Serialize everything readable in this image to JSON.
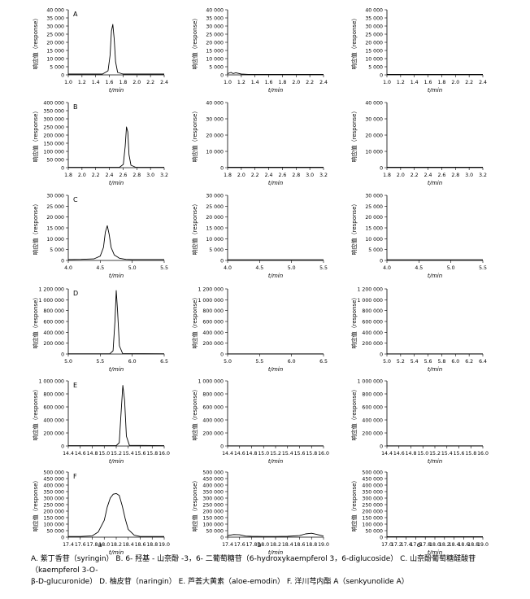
{
  "figure": {
    "columns": [
      "a",
      "b",
      "c"
    ],
    "panel_letters": [
      "A",
      "B",
      "C",
      "D",
      "E",
      "F"
    ],
    "caption_line1": "A. 紫丁香苷（syringin） B. 6- 羟基 - 山奈酚 -3，6- 二葡萄糖苷（6-hydroxykaempferol 3，6-diglucoside） C. 山奈酚葡萄糖醛酸苷（kaempferol 3-O-",
    "caption_line2": "β-D-glucuronide） D. 柚皮苷（naringin） E. 芦荟大黄素（aloe-emodin） F. 洋川芎内酯 A（senkyunolide A）"
  },
  "chart_data": [
    {
      "type": "line",
      "panel": "A",
      "column": "a",
      "xlabel": "t/min",
      "ylabel": "响应值（response）",
      "xlim": [
        1.0,
        2.4
      ],
      "xticks": [
        "1.0",
        "1.2",
        "1.4",
        "1.6",
        "1.8",
        "2.0",
        "2.2",
        "2.4"
      ],
      "ylim": [
        0,
        40000
      ],
      "yticks": [
        "0",
        "5 000",
        "10 000",
        "15 000",
        "20 000",
        "25 000",
        "30 000",
        "35 000",
        "40 000"
      ],
      "series": [
        {
          "x": [
            1.0,
            1.5,
            1.58,
            1.61,
            1.63,
            1.65,
            1.67,
            1.69,
            1.72,
            1.8,
            2.4
          ],
          "y": [
            500,
            500,
            2500,
            12000,
            27000,
            31000,
            22000,
            8000,
            1500,
            500,
            500
          ]
        }
      ]
    },
    {
      "type": "line",
      "panel": "A",
      "column": "b",
      "xlabel": "t/min",
      "ylabel": "响应值（response）",
      "xlim": [
        1.0,
        2.4
      ],
      "xticks": [
        "1.0",
        "1.2",
        "1.4",
        "1.6",
        "1.8",
        "2.0",
        "2.2",
        "2.4"
      ],
      "ylim": [
        0,
        40000
      ],
      "yticks": [
        "0",
        "5 000",
        "10 000",
        "15 000",
        "20 000",
        "25 000",
        "30 000",
        "35 000",
        "40 000"
      ],
      "series": [
        {
          "x": [
            1.0,
            1.05,
            1.08,
            1.12,
            1.2,
            1.3,
            2.4
          ],
          "y": [
            800,
            1500,
            800,
            1300,
            500,
            300,
            300
          ]
        }
      ]
    },
    {
      "type": "line",
      "panel": "A",
      "column": "c",
      "xlabel": "t/min",
      "ylabel": "响应值（response）",
      "xlim": [
        1.0,
        2.4
      ],
      "xticks": [
        "1.0",
        "1.2",
        "1.4",
        "1.6",
        "1.8",
        "2.0",
        "2.2",
        "2.4"
      ],
      "ylim": [
        0,
        40000
      ],
      "yticks": [
        "0",
        "5 000",
        "10 000",
        "15 000",
        "20 000",
        "25 000",
        "30 000",
        "35 000",
        "40 000"
      ],
      "series": [
        {
          "x": [
            1.0,
            2.4
          ],
          "y": [
            300,
            300
          ]
        }
      ]
    },
    {
      "type": "line",
      "panel": "B",
      "column": "a",
      "xlabel": "t/min",
      "ylabel": "响应值（response）",
      "xlim": [
        1.8,
        3.3
      ],
      "xticks": [
        "1.8",
        "2.0",
        "2.2",
        "2.4",
        "2.6",
        "2.8",
        "3.0",
        "3.2"
      ],
      "ylim": [
        0,
        400000
      ],
      "yticks": [
        "0",
        "50 000",
        "100 000",
        "150 000",
        "200 000",
        "250 000",
        "300 000",
        "350 000",
        "400 000"
      ],
      "series": [
        {
          "x": [
            1.8,
            2.6,
            2.66,
            2.69,
            2.71,
            2.73,
            2.75,
            2.78,
            2.85,
            3.3
          ],
          "y": [
            2000,
            2000,
            20000,
            130000,
            250000,
            220000,
            80000,
            15000,
            3000,
            2000
          ]
        }
      ]
    },
    {
      "type": "line",
      "panel": "B",
      "column": "b",
      "xlabel": "t/min",
      "ylabel": "响应值（response）",
      "xlim": [
        1.8,
        3.3
      ],
      "xticks": [
        "1.8",
        "2.0",
        "2.2",
        "2.4",
        "2.6",
        "2.8",
        "3.0",
        "3.2"
      ],
      "ylim": [
        0,
        40000
      ],
      "yticks": [
        "0",
        "10 000",
        "20 000",
        "30 000",
        "40 000"
      ],
      "series": [
        {
          "x": [
            1.8,
            3.3
          ],
          "y": [
            300,
            300
          ]
        }
      ]
    },
    {
      "type": "line",
      "panel": "B",
      "column": "c",
      "xlabel": "t/min",
      "ylabel": "响应值（response）",
      "xlim": [
        1.8,
        3.3
      ],
      "xticks": [
        "1.8",
        "2.0",
        "2.2",
        "2.4",
        "2.6",
        "2.8",
        "3.0",
        "3.2"
      ],
      "ylim": [
        0,
        40000
      ],
      "yticks": [
        "0",
        "10 000",
        "20 000",
        "30 000",
        "40 000"
      ],
      "series": [
        {
          "x": [
            1.8,
            3.3
          ],
          "y": [
            300,
            300
          ]
        }
      ]
    },
    {
      "type": "line",
      "panel": "C",
      "column": "a",
      "xlabel": "t/min",
      "ylabel": "响应值（response）",
      "xlim": [
        4.0,
        5.5
      ],
      "xticks": [
        "4.0",
        "4.5",
        "5.0",
        "5.5"
      ],
      "ylim": [
        0,
        30000
      ],
      "yticks": [
        "0",
        "5 000",
        "10 000",
        "15 000",
        "20 000",
        "25 000",
        "30 000"
      ],
      "series": [
        {
          "x": [
            4.0,
            4.2,
            4.4,
            4.5,
            4.55,
            4.58,
            4.61,
            4.64,
            4.67,
            4.72,
            4.8,
            4.9,
            5.0,
            5.5
          ],
          "y": [
            400,
            500,
            700,
            2000,
            6000,
            13000,
            16000,
            12000,
            6000,
            2500,
            1000,
            500,
            400,
            400
          ]
        }
      ]
    },
    {
      "type": "line",
      "panel": "C",
      "column": "b",
      "xlabel": "t/min",
      "ylabel": "响应值（response）",
      "xlim": [
        4.0,
        5.5
      ],
      "xticks": [
        "4.0",
        "4.5",
        "5.0",
        "5.5"
      ],
      "ylim": [
        0,
        30000
      ],
      "yticks": [
        "0",
        "5 000",
        "10 000",
        "15 000",
        "20 000",
        "25 000",
        "30 000"
      ],
      "series": [
        {
          "x": [
            4.0,
            5.5
          ],
          "y": [
            300,
            300
          ]
        }
      ]
    },
    {
      "type": "line",
      "panel": "C",
      "column": "c",
      "xlabel": "t/min",
      "ylabel": "响应值（response）",
      "xlim": [
        4.0,
        5.5
      ],
      "xticks": [
        "4.0",
        "4.5",
        "5.0",
        "5.5"
      ],
      "ylim": [
        0,
        30000
      ],
      "yticks": [
        "0",
        "5 000",
        "10 000",
        "15 000",
        "20 000",
        "25 000",
        "30 000"
      ],
      "series": [
        {
          "x": [
            4.0,
            5.5
          ],
          "y": [
            300,
            300
          ]
        }
      ]
    },
    {
      "type": "line",
      "panel": "D",
      "column": "a",
      "xlabel": "t/min",
      "ylabel": "响应值（response）",
      "xlim": [
        5.0,
        6.5
      ],
      "xticks": [
        "5.0",
        "5.5",
        "6.0",
        "6.5"
      ],
      "ylim": [
        0,
        1200000
      ],
      "yticks": [
        "0",
        "200 000",
        "400 000",
        "600 000",
        "800 000",
        "1 000 000",
        "1 200 000"
      ],
      "series": [
        {
          "x": [
            5.0,
            5.65,
            5.7,
            5.73,
            5.75,
            5.77,
            5.8,
            5.85,
            6.5
          ],
          "y": [
            5000,
            5000,
            60000,
            600000,
            1170000,
            800000,
            150000,
            8000,
            5000
          ]
        }
      ]
    },
    {
      "type": "line",
      "panel": "D",
      "column": "b",
      "xlabel": "t/min",
      "ylabel": "响应值（response）",
      "xlim": [
        5.0,
        6.5
      ],
      "xticks": [
        "5.0",
        "5.5",
        "6.0",
        "6.5"
      ],
      "ylim": [
        0,
        1200000
      ],
      "yticks": [
        "0",
        "200 000",
        "400 000",
        "600 000",
        "800 000",
        "1 000 000",
        "1 200 000"
      ],
      "series": [
        {
          "x": [
            5.0,
            6.5
          ],
          "y": [
            3000,
            3000
          ]
        }
      ]
    },
    {
      "type": "line",
      "panel": "D",
      "column": "c",
      "xlabel": "t/min",
      "ylabel": "响应值（response）",
      "xlim": [
        5.0,
        6.5
      ],
      "xticks": [
        "5.0",
        "5.2",
        "5.4",
        "5.6",
        "5.8",
        "6.0",
        "6.2",
        "6.4"
      ],
      "ylim": [
        0,
        1200000
      ],
      "yticks": [
        "0",
        "200 000",
        "400 000",
        "600 000",
        "800 000",
        "1 000 000",
        "1 200 000"
      ],
      "series": [
        {
          "x": [
            5.0,
            6.5
          ],
          "y": [
            3000,
            3000
          ]
        }
      ]
    },
    {
      "type": "line",
      "panel": "E",
      "column": "a",
      "xlabel": "t/min",
      "ylabel": "响应值（response）",
      "xlim": [
        14.4,
        16.0
      ],
      "xticks": [
        "14.4",
        "14.6",
        "14.8",
        "15.0",
        "15.2",
        "15.4",
        "15.6",
        "15.8",
        "16.0"
      ],
      "ylim": [
        0,
        1000000
      ],
      "yticks": [
        "0",
        "200 000",
        "400 000",
        "600 000",
        "800 000",
        "1 000 000"
      ],
      "series": [
        {
          "x": [
            14.4,
            15.2,
            15.25,
            15.28,
            15.31,
            15.34,
            15.37,
            15.42,
            16.0
          ],
          "y": [
            5000,
            5000,
            50000,
            500000,
            930000,
            700000,
            150000,
            10000,
            5000
          ]
        }
      ]
    },
    {
      "type": "line",
      "panel": "E",
      "column": "b",
      "xlabel": "t/min",
      "ylabel": "响应值（response）",
      "xlim": [
        14.4,
        16.0
      ],
      "xticks": [
        "14.4",
        "14.6",
        "14.8",
        "15.0",
        "15.2",
        "15.4",
        "15.6",
        "15.8",
        "16.0"
      ],
      "ylim": [
        0,
        1000000
      ],
      "yticks": [
        "0",
        "200 000",
        "400 000",
        "600 000",
        "800 000",
        "1 000 000"
      ],
      "series": [
        {
          "x": [
            14.4,
            16.0
          ],
          "y": [
            3000,
            3000
          ]
        }
      ]
    },
    {
      "type": "line",
      "panel": "E",
      "column": "c",
      "xlabel": "t/min",
      "ylabel": "响应值（response）",
      "xlim": [
        14.4,
        16.0
      ],
      "xticks": [
        "14.4",
        "14.6",
        "14.8",
        "15.0",
        "15.2",
        "15.4",
        "15.6",
        "15.8",
        "16.0"
      ],
      "ylim": [
        0,
        1000000
      ],
      "yticks": [
        "0",
        "200 000",
        "400 000",
        "600 000",
        "800 000",
        "1 000 000"
      ],
      "series": [
        {
          "x": [
            14.4,
            16.0
          ],
          "y": [
            3000,
            3000
          ]
        }
      ]
    },
    {
      "type": "line",
      "panel": "F",
      "column": "a",
      "xlabel": "t/min",
      "ylabel": "响应值（response）",
      "xlim": [
        17.4,
        19.0
      ],
      "xticks": [
        "17.4",
        "17.6",
        "17.8",
        "18.0",
        "18.2",
        "18.4",
        "18.6",
        "18.8",
        "19.0"
      ],
      "ylim": [
        0,
        500000
      ],
      "yticks": [
        "0",
        "50 000",
        "100 000",
        "150 000",
        "200 000",
        "250 000",
        "300 000",
        "350 000",
        "400 000",
        "450 000",
        "500 000"
      ],
      "series": [
        {
          "x": [
            17.4,
            17.6,
            17.8,
            17.9,
            18.0,
            18.05,
            18.1,
            18.15,
            18.2,
            18.25,
            18.3,
            18.35,
            18.4,
            18.5,
            18.6,
            18.8,
            19.0
          ],
          "y": [
            5000,
            5000,
            10000,
            40000,
            130000,
            230000,
            300000,
            330000,
            335000,
            320000,
            240000,
            140000,
            60000,
            15000,
            5000,
            5000,
            5000
          ]
        }
      ]
    },
    {
      "type": "line",
      "panel": "F",
      "column": "b",
      "xlabel": "t/min",
      "ylabel": "响应值（response）",
      "xlim": [
        17.4,
        19.0
      ],
      "xticks": [
        "17.4",
        "17.6",
        "17.8",
        "18.0",
        "18.2",
        "18.4",
        "18.6",
        "18.8",
        "19.0"
      ],
      "ylim": [
        0,
        500000
      ],
      "yticks": [
        "0",
        "50 000",
        "100 000",
        "150 000",
        "200 000",
        "250 000",
        "300 000",
        "350 000",
        "400 000",
        "450 000",
        "500 000"
      ],
      "series": [
        {
          "x": [
            17.4,
            17.5,
            17.6,
            17.7,
            17.8,
            18.0,
            18.2,
            18.4,
            18.6,
            18.7,
            18.8,
            18.9,
            19.0
          ],
          "y": [
            12000,
            20000,
            18000,
            8000,
            6000,
            5000,
            5000,
            6000,
            12000,
            25000,
            30000,
            20000,
            8000
          ]
        }
      ]
    },
    {
      "type": "line",
      "panel": "F",
      "column": "c",
      "xlabel": "t/min",
      "ylabel": "响应值（response）",
      "xlim": [
        17.0,
        19.0
      ],
      "xticks": [
        "17.0",
        "17.2",
        "17.4",
        "17.6",
        "17.8",
        "18.0",
        "18.2",
        "18.4",
        "18.6",
        "18.8",
        "19.0"
      ],
      "ylim": [
        0,
        500000
      ],
      "yticks": [
        "0",
        "50 000",
        "100 000",
        "150 000",
        "200 000",
        "250 000",
        "300 000",
        "350 000",
        "400 000",
        "450 000",
        "500 000"
      ],
      "series": [
        {
          "x": [
            17.0,
            19.0
          ],
          "y": [
            3000,
            3000
          ]
        }
      ]
    }
  ]
}
